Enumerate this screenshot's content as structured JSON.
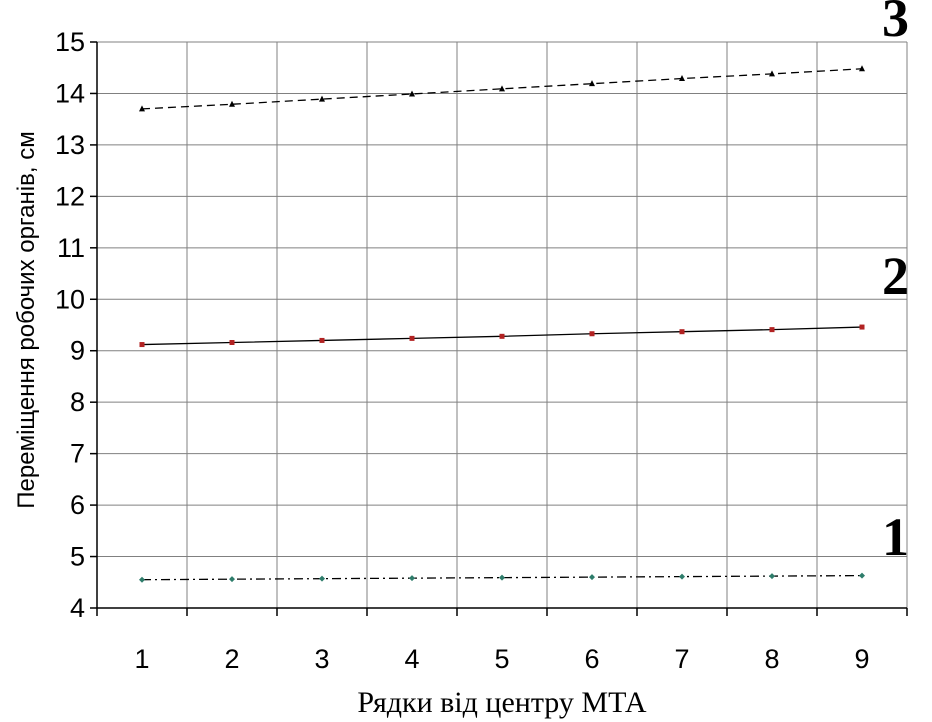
{
  "chart_data": {
    "type": "line",
    "title": "",
    "xlabel": "Рядки від центру МТА",
    "ylabel": "Переміщення робочих органів, см",
    "categories": [
      "1",
      "2",
      "3",
      "4",
      "5",
      "6",
      "7",
      "8",
      "9"
    ],
    "ylim": [
      4,
      15
    ],
    "yticks": [
      4,
      5,
      6,
      7,
      8,
      9,
      10,
      11,
      12,
      13,
      14,
      15
    ],
    "grid": true,
    "legend": "none",
    "series": [
      {
        "name": "1",
        "values": [
          4.55,
          4.56,
          4.57,
          4.58,
          4.59,
          4.6,
          4.61,
          4.62,
          4.63
        ],
        "line_style": "dash-dot",
        "color": "#000000",
        "marker_color": "#2e7d6b",
        "marker": "diamond"
      },
      {
        "name": "2",
        "values": [
          9.12,
          9.16,
          9.2,
          9.24,
          9.28,
          9.33,
          9.37,
          9.41,
          9.46
        ],
        "line_style": "solid",
        "color": "#000000",
        "marker_color": "#b22222",
        "marker": "square"
      },
      {
        "name": "3",
        "values": [
          13.7,
          13.79,
          13.89,
          13.99,
          14.09,
          14.19,
          14.29,
          14.38,
          14.48
        ],
        "line_style": "dashed",
        "color": "#000000",
        "marker_color": "#000000",
        "marker": "triangle"
      }
    ]
  }
}
